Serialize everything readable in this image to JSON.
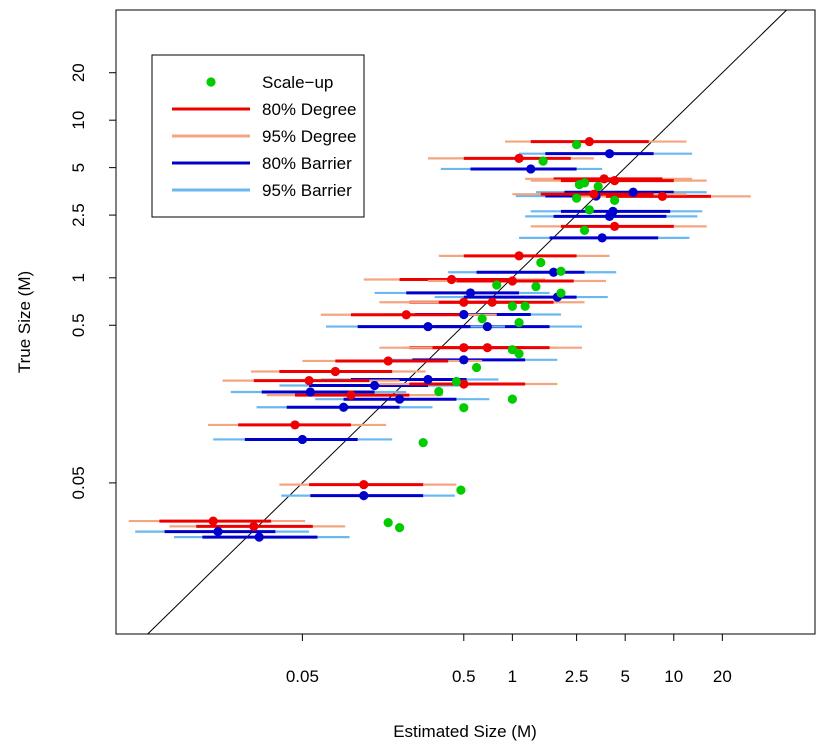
{
  "chart_data": {
    "type": "scatter",
    "title": "",
    "xlabel": "Estimated Size (M)",
    "ylabel": "True Size (M)",
    "xscale": "log",
    "yscale": "log",
    "xlim": [
      0.0035,
      75
    ],
    "ylim": [
      0.0055,
      50
    ],
    "xticks": [
      {
        "value": 0.05,
        "label": "0.05"
      },
      {
        "value": 0.5,
        "label": "0.5"
      },
      {
        "value": 1,
        "label": "1"
      },
      {
        "value": 2.5,
        "label": "2.5"
      },
      {
        "value": 5,
        "label": "5"
      },
      {
        "value": 10,
        "label": "10"
      },
      {
        "value": 20,
        "label": "20"
      }
    ],
    "yticks": [
      {
        "value": 0.05,
        "label": "0.05"
      },
      {
        "value": 0.5,
        "label": "0.5"
      },
      {
        "value": 1,
        "label": "1"
      },
      {
        "value": 2.5,
        "label": "2.5"
      },
      {
        "value": 5,
        "label": "5"
      },
      {
        "value": 10,
        "label": "10"
      },
      {
        "value": 20,
        "label": "20"
      }
    ],
    "reference_line": "y = x",
    "grid": false,
    "legend_position": "top-left",
    "legend": [
      {
        "label": "Scale−up",
        "kind": "point",
        "color": "#00cc00"
      },
      {
        "label": "80% Degree",
        "kind": "line",
        "color": "#ee0000"
      },
      {
        "label": "95% Degree",
        "kind": "line",
        "color": "#f4a582"
      },
      {
        "label": "80% Barrier",
        "kind": "line",
        "color": "#0000cc"
      },
      {
        "label": "95% Barrier",
        "kind": "line",
        "color": "#6ab8f0"
      }
    ],
    "colors": {
      "scaleup": "#00cc00",
      "degree80": "#ee0000",
      "degree95": "#f4a582",
      "barrier80": "#0000cc",
      "barrier95": "#6ab8f0"
    },
    "series": [
      {
        "name": "Degree",
        "points": [
          {
            "x": 3.0,
            "y": 6.9,
            "i80": [
              1.3,
              7.0
            ],
            "i95": [
              0.9,
              12
            ]
          },
          {
            "x": 1.1,
            "y": 5.4,
            "i80": [
              0.5,
              2.3
            ],
            "i95": [
              0.3,
              3.2
            ]
          },
          {
            "x": 3.7,
            "y": 4.0,
            "i80": [
              1.8,
              8.5
            ],
            "i95": [
              1.2,
              13
            ]
          },
          {
            "x": 4.3,
            "y": 3.9,
            "i80": [
              2.0,
              10
            ],
            "i95": [
              1.3,
              16
            ]
          },
          {
            "x": 8.5,
            "y": 3.1,
            "i80": [
              3.8,
              17
            ],
            "i95": [
              2.5,
              30
            ]
          },
          {
            "x": 3.2,
            "y": 3.2,
            "i80": [
              1.5,
              7.5
            ],
            "i95": [
              1.0,
              12
            ]
          },
          {
            "x": 4.3,
            "y": 2.0,
            "i80": [
              2.0,
              10
            ],
            "i95": [
              1.3,
              16
            ]
          },
          {
            "x": 1.1,
            "y": 1.3,
            "i80": [
              0.5,
              2.5
            ],
            "i95": [
              0.35,
              4.0
            ]
          },
          {
            "x": 0.42,
            "y": 0.92,
            "i80": [
              0.2,
              1.0
            ],
            "i95": [
              0.12,
              1.6
            ]
          },
          {
            "x": 1.0,
            "y": 0.9,
            "i80": [
              0.45,
              2.4
            ],
            "i95": [
              0.3,
              3.8
            ]
          },
          {
            "x": 0.5,
            "y": 0.66,
            "i80": [
              0.23,
              1.2
            ],
            "i95": [
              0.15,
              1.9
            ]
          },
          {
            "x": 0.75,
            "y": 0.66,
            "i80": [
              0.35,
              1.8
            ],
            "i95": [
              0.23,
              2.8
            ]
          },
          {
            "x": 0.22,
            "y": 0.55,
            "i80": [
              0.1,
              0.5
            ],
            "i95": [
              0.065,
              0.8
            ]
          },
          {
            "x": 0.5,
            "y": 0.34,
            "i80": [
              0.23,
              1.2
            ],
            "i95": [
              0.15,
              1.9
            ]
          },
          {
            "x": 0.7,
            "y": 0.34,
            "i80": [
              0.32,
              1.7
            ],
            "i95": [
              0.21,
              2.7
            ]
          },
          {
            "x": 0.17,
            "y": 0.28,
            "i80": [
              0.08,
              0.4
            ],
            "i95": [
              0.05,
              0.65
            ]
          },
          {
            "x": 0.08,
            "y": 0.24,
            "i80": [
              0.036,
              0.18
            ],
            "i95": [
              0.024,
              0.29
            ]
          },
          {
            "x": 0.055,
            "y": 0.21,
            "i80": [
              0.025,
              0.13
            ],
            "i95": [
              0.016,
              0.2
            ]
          },
          {
            "x": 0.5,
            "y": 0.2,
            "i80": [
              0.23,
              1.2
            ],
            "i95": [
              0.15,
              1.9
            ]
          },
          {
            "x": 0.1,
            "y": 0.17,
            "i80": [
              0.045,
              0.23
            ],
            "i95": [
              0.03,
              0.37
            ]
          },
          {
            "x": 0.045,
            "y": 0.11,
            "i80": [
              0.02,
              0.1
            ],
            "i95": [
              0.013,
              0.165
            ]
          },
          {
            "x": 0.12,
            "y": 0.046,
            "i80": [
              0.055,
              0.28
            ],
            "i95": [
              0.036,
              0.45
            ]
          },
          {
            "x": 0.014,
            "y": 0.027,
            "i80": [
              0.0065,
              0.032
            ],
            "i95": [
              0.0042,
              0.052
            ]
          },
          {
            "x": 0.025,
            "y": 0.025,
            "i80": [
              0.011,
              0.058
            ],
            "i95": [
              0.0075,
              0.092
            ]
          }
        ]
      },
      {
        "name": "Barrier",
        "points": [
          {
            "x": 4.0,
            "y": 6.5,
            "i80": [
              1.6,
              7.5
            ],
            "i95": [
              1.1,
              13
            ]
          },
          {
            "x": 1.3,
            "y": 5.2,
            "i80": [
              0.55,
              2.5
            ],
            "i95": [
              0.36,
              3.6
            ]
          },
          {
            "x": 5.6,
            "y": 3.7,
            "i80": [
              2.1,
              10
            ],
            "i95": [
              1.4,
              16
            ]
          },
          {
            "x": 3.3,
            "y": 3.5,
            "i80": [
              1.6,
              8
            ],
            "i95": [
              1.05,
              12.5
            ]
          },
          {
            "x": 4.2,
            "y": 2.8,
            "i80": [
              2.0,
              9.5
            ],
            "i95": [
              1.3,
              15
            ]
          },
          {
            "x": 4.0,
            "y": 2.6,
            "i80": [
              1.8,
              9
            ],
            "i95": [
              1.2,
              14
            ]
          },
          {
            "x": 3.6,
            "y": 1.9,
            "i80": [
              1.7,
              8
            ],
            "i95": [
              1.1,
              12.5
            ]
          },
          {
            "x": 1.8,
            "y": 1.15,
            "i80": [
              0.6,
              2.8
            ],
            "i95": [
              0.4,
              4.4
            ]
          },
          {
            "x": 0.55,
            "y": 0.85,
            "i80": [
              0.22,
              1.1
            ],
            "i95": [
              0.14,
              1.7
            ]
          },
          {
            "x": 1.9,
            "y": 0.8,
            "i80": [
              0.5,
              2.5
            ],
            "i95": [
              0.33,
              3.9
            ]
          },
          {
            "x": 0.5,
            "y": 0.62,
            "i80": [
              0.25,
              1.3
            ],
            "i95": [
              0.16,
              2.0
            ]
          },
          {
            "x": 0.7,
            "y": 0.52,
            "i80": [
              0.33,
              1.7
            ],
            "i95": [
              0.22,
              2.7
            ]
          },
          {
            "x": 0.3,
            "y": 0.52,
            "i80": [
              0.11,
              0.55
            ],
            "i95": [
              0.07,
              0.9
            ]
          },
          {
            "x": 0.5,
            "y": 0.32,
            "i80": [
              0.24,
              1.2
            ],
            "i95": [
              0.16,
              1.9
            ]
          },
          {
            "x": 0.3,
            "y": 0.24,
            "i80": [
              0.1,
              0.52
            ],
            "i95": [
              0.065,
              0.82
            ]
          },
          {
            "x": 0.14,
            "y": 0.22,
            "i80": [
              0.055,
              0.3
            ],
            "i95": [
              0.036,
              0.47
            ]
          },
          {
            "x": 0.056,
            "y": 0.2,
            "i80": [
              0.028,
              0.14
            ],
            "i95": [
              0.018,
              0.22
            ]
          },
          {
            "x": 0.2,
            "y": 0.18,
            "i80": [
              0.09,
              0.45
            ],
            "i95": [
              0.06,
              0.72
            ]
          },
          {
            "x": 0.09,
            "y": 0.16,
            "i80": [
              0.04,
              0.2
            ],
            "i95": [
              0.026,
              0.32
            ]
          },
          {
            "x": 0.05,
            "y": 0.1,
            "i80": [
              0.022,
              0.11
            ],
            "i95": [
              0.014,
              0.18
            ]
          },
          {
            "x": 0.12,
            "y": 0.044,
            "i80": [
              0.056,
              0.28
            ],
            "i95": [
              0.037,
              0.44
            ]
          },
          {
            "x": 0.015,
            "y": 0.026,
            "i80": [
              0.007,
              0.034
            ],
            "i95": [
              0.0046,
              0.055
            ]
          },
          {
            "x": 0.027,
            "y": 0.024,
            "i80": [
              0.012,
              0.062
            ],
            "i95": [
              0.008,
              0.098
            ]
          }
        ]
      },
      {
        "name": "Scale−up",
        "points": [
          {
            "x": 2.5,
            "y": 7.0
          },
          {
            "x": 1.55,
            "y": 5.5
          },
          {
            "x": 2.8,
            "y": 4.0
          },
          {
            "x": 2.6,
            "y": 3.9
          },
          {
            "x": 3.4,
            "y": 3.8
          },
          {
            "x": 2.5,
            "y": 3.2
          },
          {
            "x": 4.3,
            "y": 3.1
          },
          {
            "x": 3.0,
            "y": 2.7
          },
          {
            "x": 2.8,
            "y": 2.0
          },
          {
            "x": 1.5,
            "y": 1.25
          },
          {
            "x": 2.0,
            "y": 1.1
          },
          {
            "x": 0.8,
            "y": 0.9
          },
          {
            "x": 1.4,
            "y": 0.88
          },
          {
            "x": 2.0,
            "y": 0.8
          },
          {
            "x": 1.0,
            "y": 0.66
          },
          {
            "x": 1.2,
            "y": 0.66
          },
          {
            "x": 0.65,
            "y": 0.55
          },
          {
            "x": 1.1,
            "y": 0.52
          },
          {
            "x": 1.0,
            "y": 0.35
          },
          {
            "x": 1.1,
            "y": 0.33
          },
          {
            "x": 0.6,
            "y": 0.27
          },
          {
            "x": 0.45,
            "y": 0.22
          },
          {
            "x": 0.35,
            "y": 0.19
          },
          {
            "x": 1.0,
            "y": 0.17
          },
          {
            "x": 0.5,
            "y": 0.15
          },
          {
            "x": 0.28,
            "y": 0.09
          },
          {
            "x": 0.48,
            "y": 0.045
          },
          {
            "x": 0.17,
            "y": 0.028
          },
          {
            "x": 0.2,
            "y": 0.026
          }
        ]
      }
    ]
  }
}
